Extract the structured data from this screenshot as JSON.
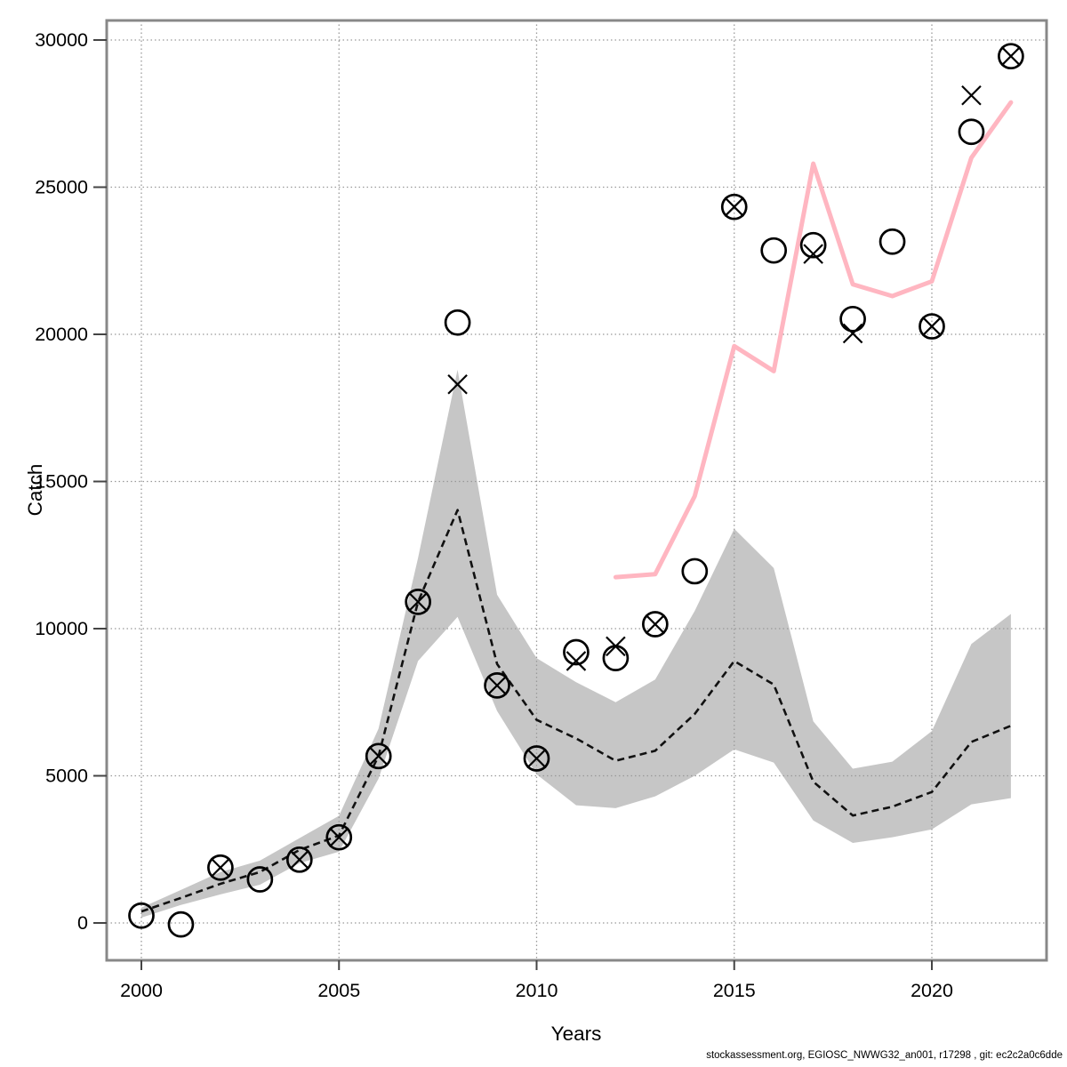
{
  "figure": {
    "footer": "stockassessment.org, EGIOSC_NWWG32_an001, r17298 , git: ec2c2a0c6dde"
  },
  "chart_data": {
    "type": "line",
    "title": "",
    "xlabel": "Years",
    "ylabel": "Catch",
    "x_ticks": [
      2000,
      2005,
      2010,
      2015,
      2020
    ],
    "y_ticks": [
      0,
      5000,
      10000,
      15000,
      20000,
      25000,
      30000
    ],
    "xlim": [
      1999.1,
      2022.9
    ],
    "ylim": [
      -1200,
      30700
    ],
    "grid": "dotted",
    "legend_position": "none",
    "colors": {
      "band": "#c6c6c6",
      "fit_line": "#111111",
      "pink_line": "#ffb6c1",
      "marker": "#000000",
      "grid": "#999999",
      "box": "#888888"
    },
    "years": [
      2000,
      2001,
      2002,
      2003,
      2004,
      2005,
      2006,
      2007,
      2008,
      2009,
      2010,
      2011,
      2012,
      2013,
      2014,
      2015,
      2016,
      2017,
      2018,
      2019,
      2020,
      2021,
      2022
    ],
    "series": [
      {
        "name": "confidence-band",
        "type": "band",
        "upper": [
          520,
          1120,
          1730,
          2120,
          2880,
          3640,
          6600,
          12400,
          18800,
          11150,
          9000,
          8180,
          7500,
          8270,
          10600,
          13390,
          12060,
          6850,
          5240,
          5480,
          6520,
          9480,
          10500
        ],
        "lower": [
          180,
          610,
          970,
          1300,
          2030,
          2420,
          4900,
          8900,
          10400,
          7200,
          5050,
          4000,
          3900,
          4300,
          5000,
          5900,
          5450,
          3480,
          2720,
          2910,
          3180,
          4030,
          4240
        ]
      },
      {
        "name": "fitted-catch",
        "type": "line",
        "style": "dashed",
        "values": [
          390,
          850,
          1330,
          1730,
          2480,
          2970,
          5670,
          10910,
          14030,
          8800,
          6900,
          6270,
          5510,
          5850,
          7100,
          8900,
          8100,
          4800,
          3650,
          3950,
          4450,
          6150,
          6700
        ]
      },
      {
        "name": "pink-run-line",
        "type": "line",
        "style": "solid",
        "x": [
          2012,
          2013,
          2014,
          2015,
          2016,
          2017,
          2018,
          2019,
          2020,
          2021,
          2022
        ],
        "values": [
          11750,
          11850,
          14500,
          19600,
          18750,
          25800,
          21700,
          21300,
          21800,
          26000,
          27880
        ]
      },
      {
        "name": "observed-catch-circles",
        "type": "scatter",
        "marker": "circle",
        "values": [
          250,
          -50,
          1880,
          1480,
          2150,
          2910,
          5670,
          10910,
          20400,
          8070,
          5590,
          9200,
          9000,
          10150,
          11950,
          24330,
          22850,
          23030,
          20520,
          23150,
          20270,
          26880,
          29450
        ]
      },
      {
        "name": "predicted-catch-crosses",
        "type": "scatter",
        "marker": "x",
        "values": [
          null,
          null,
          1880,
          null,
          2150,
          2910,
          5670,
          10910,
          18300,
          8070,
          5590,
          8900,
          9400,
          10150,
          null,
          24330,
          null,
          22730,
          20030,
          null,
          20270,
          28120,
          29450
        ]
      }
    ],
    "footer": "stockassessment.org, EGIOSC_NWWG32_an001, r17298 , git: ec2c2a0c6dde"
  }
}
